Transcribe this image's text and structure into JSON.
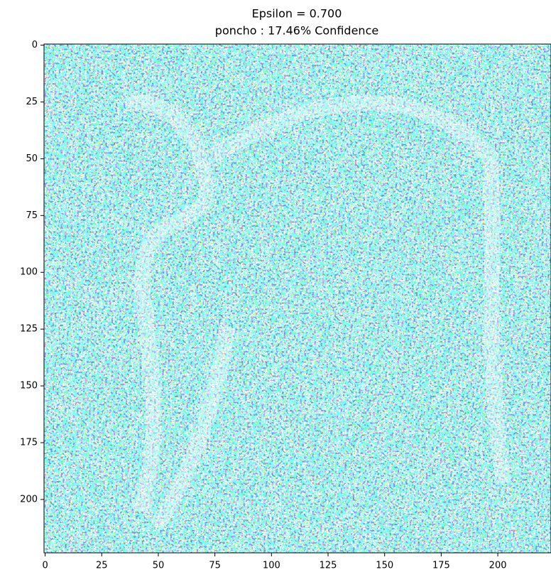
{
  "chart_data": {
    "type": "image",
    "title": "Epsilon = 0.700",
    "subtitle": "poncho : 17.46% Confidence",
    "xlim": [
      -0.5,
      223.5
    ],
    "ylim": [
      223.5,
      -0.5
    ],
    "xticks": [
      0,
      25,
      50,
      75,
      100,
      125,
      150,
      175,
      200
    ],
    "yticks": [
      0,
      25,
      50,
      75,
      100,
      125,
      150,
      175,
      200
    ]
  }
}
